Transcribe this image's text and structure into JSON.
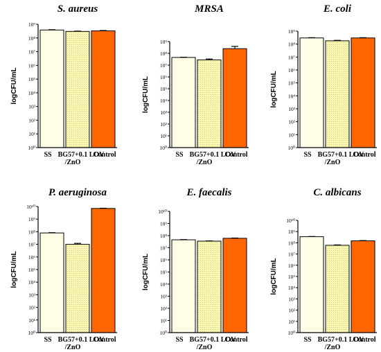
{
  "chart_data": [
    {
      "type": "bar",
      "title": "S. aureus",
      "ylabel": "logCFU/mL",
      "yscale": "log",
      "ylim_exp": [
        0,
        9
      ],
      "ytick_labels": [
        "10⁰",
        "10¹",
        "10²",
        "10³",
        "10⁴",
        "10⁵",
        "10⁶",
        "10⁷",
        "10⁸",
        "10⁹"
      ],
      "categories": [
        "SS",
        "BG57+0.1 LOV\n/ZnO",
        "Control"
      ],
      "values": [
        380000000.0,
        300000000.0,
        330000000.0
      ],
      "errors": [
        [
          360000000.0,
          400000000.0
        ],
        [
          285000000.0,
          315000000.0
        ],
        [
          310000000.0,
          350000000.0
        ]
      ]
    },
    {
      "type": "bar",
      "title": "MRSA",
      "ylabel": "logCFU/mL",
      "yscale": "log",
      "ylim_exp": [
        0,
        9
      ],
      "ytick_labels": [
        "10⁰",
        "10¹",
        "10²",
        "10³",
        "10⁴",
        "10⁵",
        "10⁶",
        "10⁷",
        "10⁸",
        "10⁹"
      ],
      "categories": [
        "SS",
        "BG57+0.1 LOV\n/ZnO",
        "Control"
      ],
      "values": [
        45000000.0,
        28000000.0,
        250000000.0
      ],
      "errors": [
        [
          43000000.0,
          47000000.0
        ],
        [
          24000000.0,
          33000000.0
        ],
        [
          140000000.0,
          390000000.0
        ]
      ]
    },
    {
      "type": "bar",
      "title": "E. coli",
      "ylabel": "logCFU/mL",
      "yscale": "log",
      "ylim_exp": [
        0,
        9
      ],
      "ytick_labels": [
        "10⁰",
        "10¹",
        "10²",
        "10³",
        "10⁴",
        "10⁵",
        "10⁶",
        "10⁷",
        "10⁸",
        "10⁹"
      ],
      "categories": [
        "SS",
        "BG57+0.1 LOV\n/ZnO",
        "Control"
      ],
      "values": [
        300000000.0,
        180000000.0,
        300000000.0
      ],
      "errors": [
        [
          285000000.0,
          315000000.0
        ],
        [
          165000000.0,
          195000000.0
        ],
        [
          285000000.0,
          315000000.0
        ]
      ]
    },
    {
      "type": "bar",
      "title": "P. aeruginosa",
      "ylabel": "logCFU/mL",
      "yscale": "log",
      "ylim_exp": [
        0,
        10
      ],
      "ytick_labels": [
        "10⁰",
        "10¹",
        "10²",
        "10³",
        "10⁴",
        "10⁵",
        "10⁶",
        "10⁷",
        "10⁸",
        "10⁹",
        "10¹⁰"
      ],
      "categories": [
        "SS",
        "BG57+0.1 LOV\n/ZnO",
        "Control"
      ],
      "values": [
        80000000.0,
        10000000.0,
        7000000000.0
      ],
      "errors": [
        [
          76000000.0,
          84000000.0
        ],
        [
          8800000.0,
          12000000.0
        ],
        [
          6700000000.0,
          7300000000.0
        ]
      ]
    },
    {
      "type": "bar",
      "title": "E. faecalis",
      "ylabel": "logCFU/mL",
      "yscale": "log",
      "ylim_exp": [
        0,
        10
      ],
      "ytick_labels": [
        "10⁰",
        "10¹",
        "10²",
        "10³",
        "10⁴",
        "10⁵",
        "10⁶",
        "10⁷",
        "10⁸",
        "10⁹",
        "10¹⁰"
      ],
      "categories": [
        "SS",
        "BG57+0.1 LOV\n/ZnO",
        "Control"
      ],
      "values": [
        45000000.0,
        35000000.0,
        60000000.0
      ],
      "errors": [
        [
          43000000.0,
          47000000.0
        ],
        [
          33500000.0,
          36500000.0
        ],
        [
          58000000.0,
          63000000.0
        ]
      ]
    },
    {
      "type": "bar",
      "title": "C. albicans",
      "ylabel": "logCFU/mL",
      "yscale": "log",
      "ylim_exp": [
        0,
        10
      ],
      "ytick_labels": [
        "10⁰",
        "10¹",
        "10²",
        "10³",
        "10⁴",
        "10⁵",
        "10⁶",
        "10⁷",
        "10⁸",
        "10⁹",
        "10¹⁰"
      ],
      "categories": [
        "SS",
        "BG57+0.1 LOV\n/ZnO",
        "Control"
      ],
      "values": [
        350000000.0,
        60000000.0,
        150000000.0
      ],
      "errors": [
        [
          335000000.0,
          365000000.0
        ],
        [
          56000000.0,
          65000000.0
        ],
        [
          142000000.0,
          158000000.0
        ]
      ]
    }
  ],
  "colors": {
    "ss": "#fffde6",
    "bg": "#faf7b2",
    "bg_dot": "#c6c07a",
    "control": "#ff6600",
    "stroke": "#000000"
  }
}
